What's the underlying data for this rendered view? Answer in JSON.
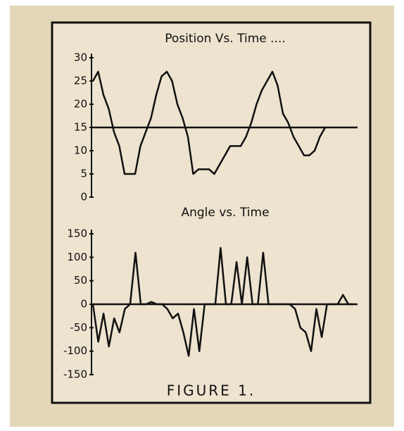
{
  "chart_data": [
    {
      "type": "line",
      "title": "Position Vs. Time ....",
      "color": "#111111",
      "values": [
        25,
        27,
        22,
        19,
        14,
        11,
        5,
        5,
        5,
        11,
        14,
        17,
        22,
        26,
        27,
        25,
        20,
        17,
        13,
        5,
        6,
        6,
        6,
        5,
        7,
        9,
        11,
        11,
        11,
        13,
        16,
        20,
        23,
        25,
        27,
        24,
        18,
        16,
        13,
        11,
        9,
        9,
        10,
        13,
        15
      ],
      "ylim": [
        0,
        30
      ],
      "yticks": [
        0,
        5,
        10,
        15,
        20,
        25,
        30
      ],
      "reference_line": 15
    },
    {
      "type": "line",
      "title": "Angle vs. Time",
      "color": "#111111",
      "values": [
        0,
        -80,
        -20,
        -90,
        -30,
        -60,
        -10,
        0,
        110,
        0,
        0,
        5,
        0,
        0,
        -10,
        -30,
        -20,
        -60,
        -110,
        -10,
        -100,
        0,
        0,
        0,
        120,
        0,
        0,
        90,
        0,
        100,
        0,
        0,
        110,
        0,
        0,
        0,
        0,
        0,
        -10,
        -50,
        -60,
        -100,
        -10,
        -70,
        0,
        0,
        0,
        20,
        0,
        0
      ],
      "ylim": [
        -150,
        150
      ],
      "yticks": [
        -150,
        -100,
        -50,
        0,
        50,
        100,
        150
      ],
      "reference_line": 0
    }
  ],
  "caption": "FIGURE 1."
}
